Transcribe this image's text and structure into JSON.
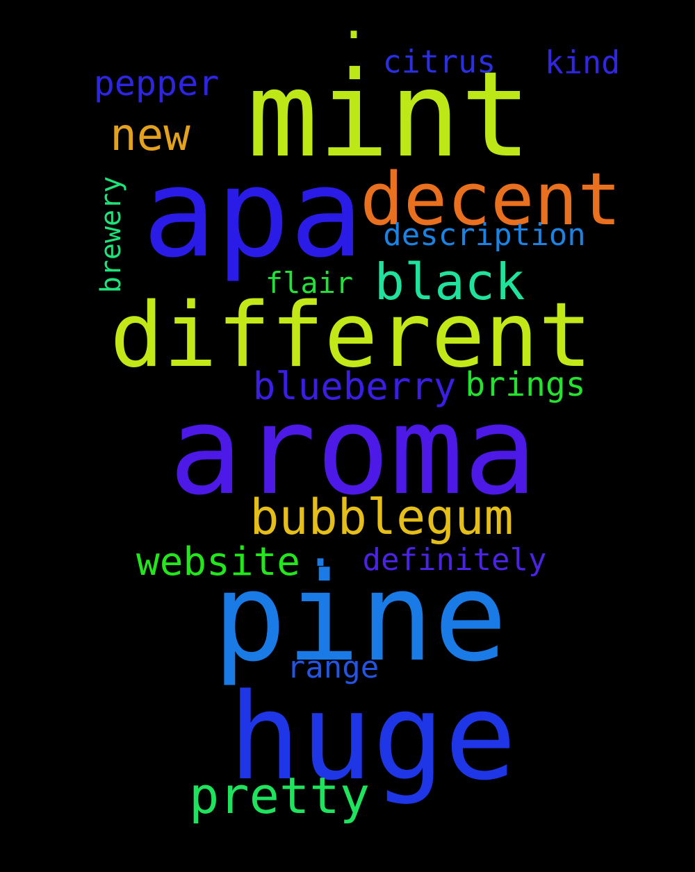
{
  "words": {
    "mint": {
      "text": "mint",
      "color": "#bde716"
    },
    "apa": {
      "text": "apa",
      "color": "#2a1be6"
    },
    "decent": {
      "text": "decent",
      "color": "#e8701e"
    },
    "different": {
      "text": "different",
      "color": "#c3e817"
    },
    "aroma": {
      "text": "aroma",
      "color": "#4d19e6"
    },
    "bubblegum": {
      "text": "bubblegum",
      "color": "#e5be19"
    },
    "pine": {
      "text": "pine",
      "color": "#1a7ae6"
    },
    "huge": {
      "text": "huge",
      "color": "#1e36e6"
    },
    "pretty": {
      "text": "pretty",
      "color": "#1ee35c"
    },
    "black": {
      "text": "black",
      "color": "#1fe39c"
    },
    "new": {
      "text": "new",
      "color": "#e3a11e"
    },
    "pepper": {
      "text": "pepper",
      "color": "#2e25e2"
    },
    "citrus": {
      "text": "citrus",
      "color": "#2b2fe2"
    },
    "kind": {
      "text": "kind",
      "color": "#3126e2"
    },
    "description": {
      "text": "description",
      "color": "#1b83e3"
    },
    "brewery": {
      "text": "brewery",
      "color": "#1fe37a"
    },
    "flair": {
      "text": "flair",
      "color": "#22e139"
    },
    "blueberry": {
      "text": "blueberry",
      "color": "#3a1ee3"
    },
    "brings": {
      "text": "brings",
      "color": "#24e32e"
    },
    "website": {
      "text": "website",
      "color": "#24e61c"
    },
    "definitely": {
      "text": "definitely",
      "color": "#4a23e3"
    },
    "range": {
      "text": "range",
      "color": "#2454e3"
    },
    "dot1": {
      "text": ".",
      "color": "#bde716"
    },
    "dot2": {
      "text": ".",
      "color": "#1a7ae6"
    }
  }
}
